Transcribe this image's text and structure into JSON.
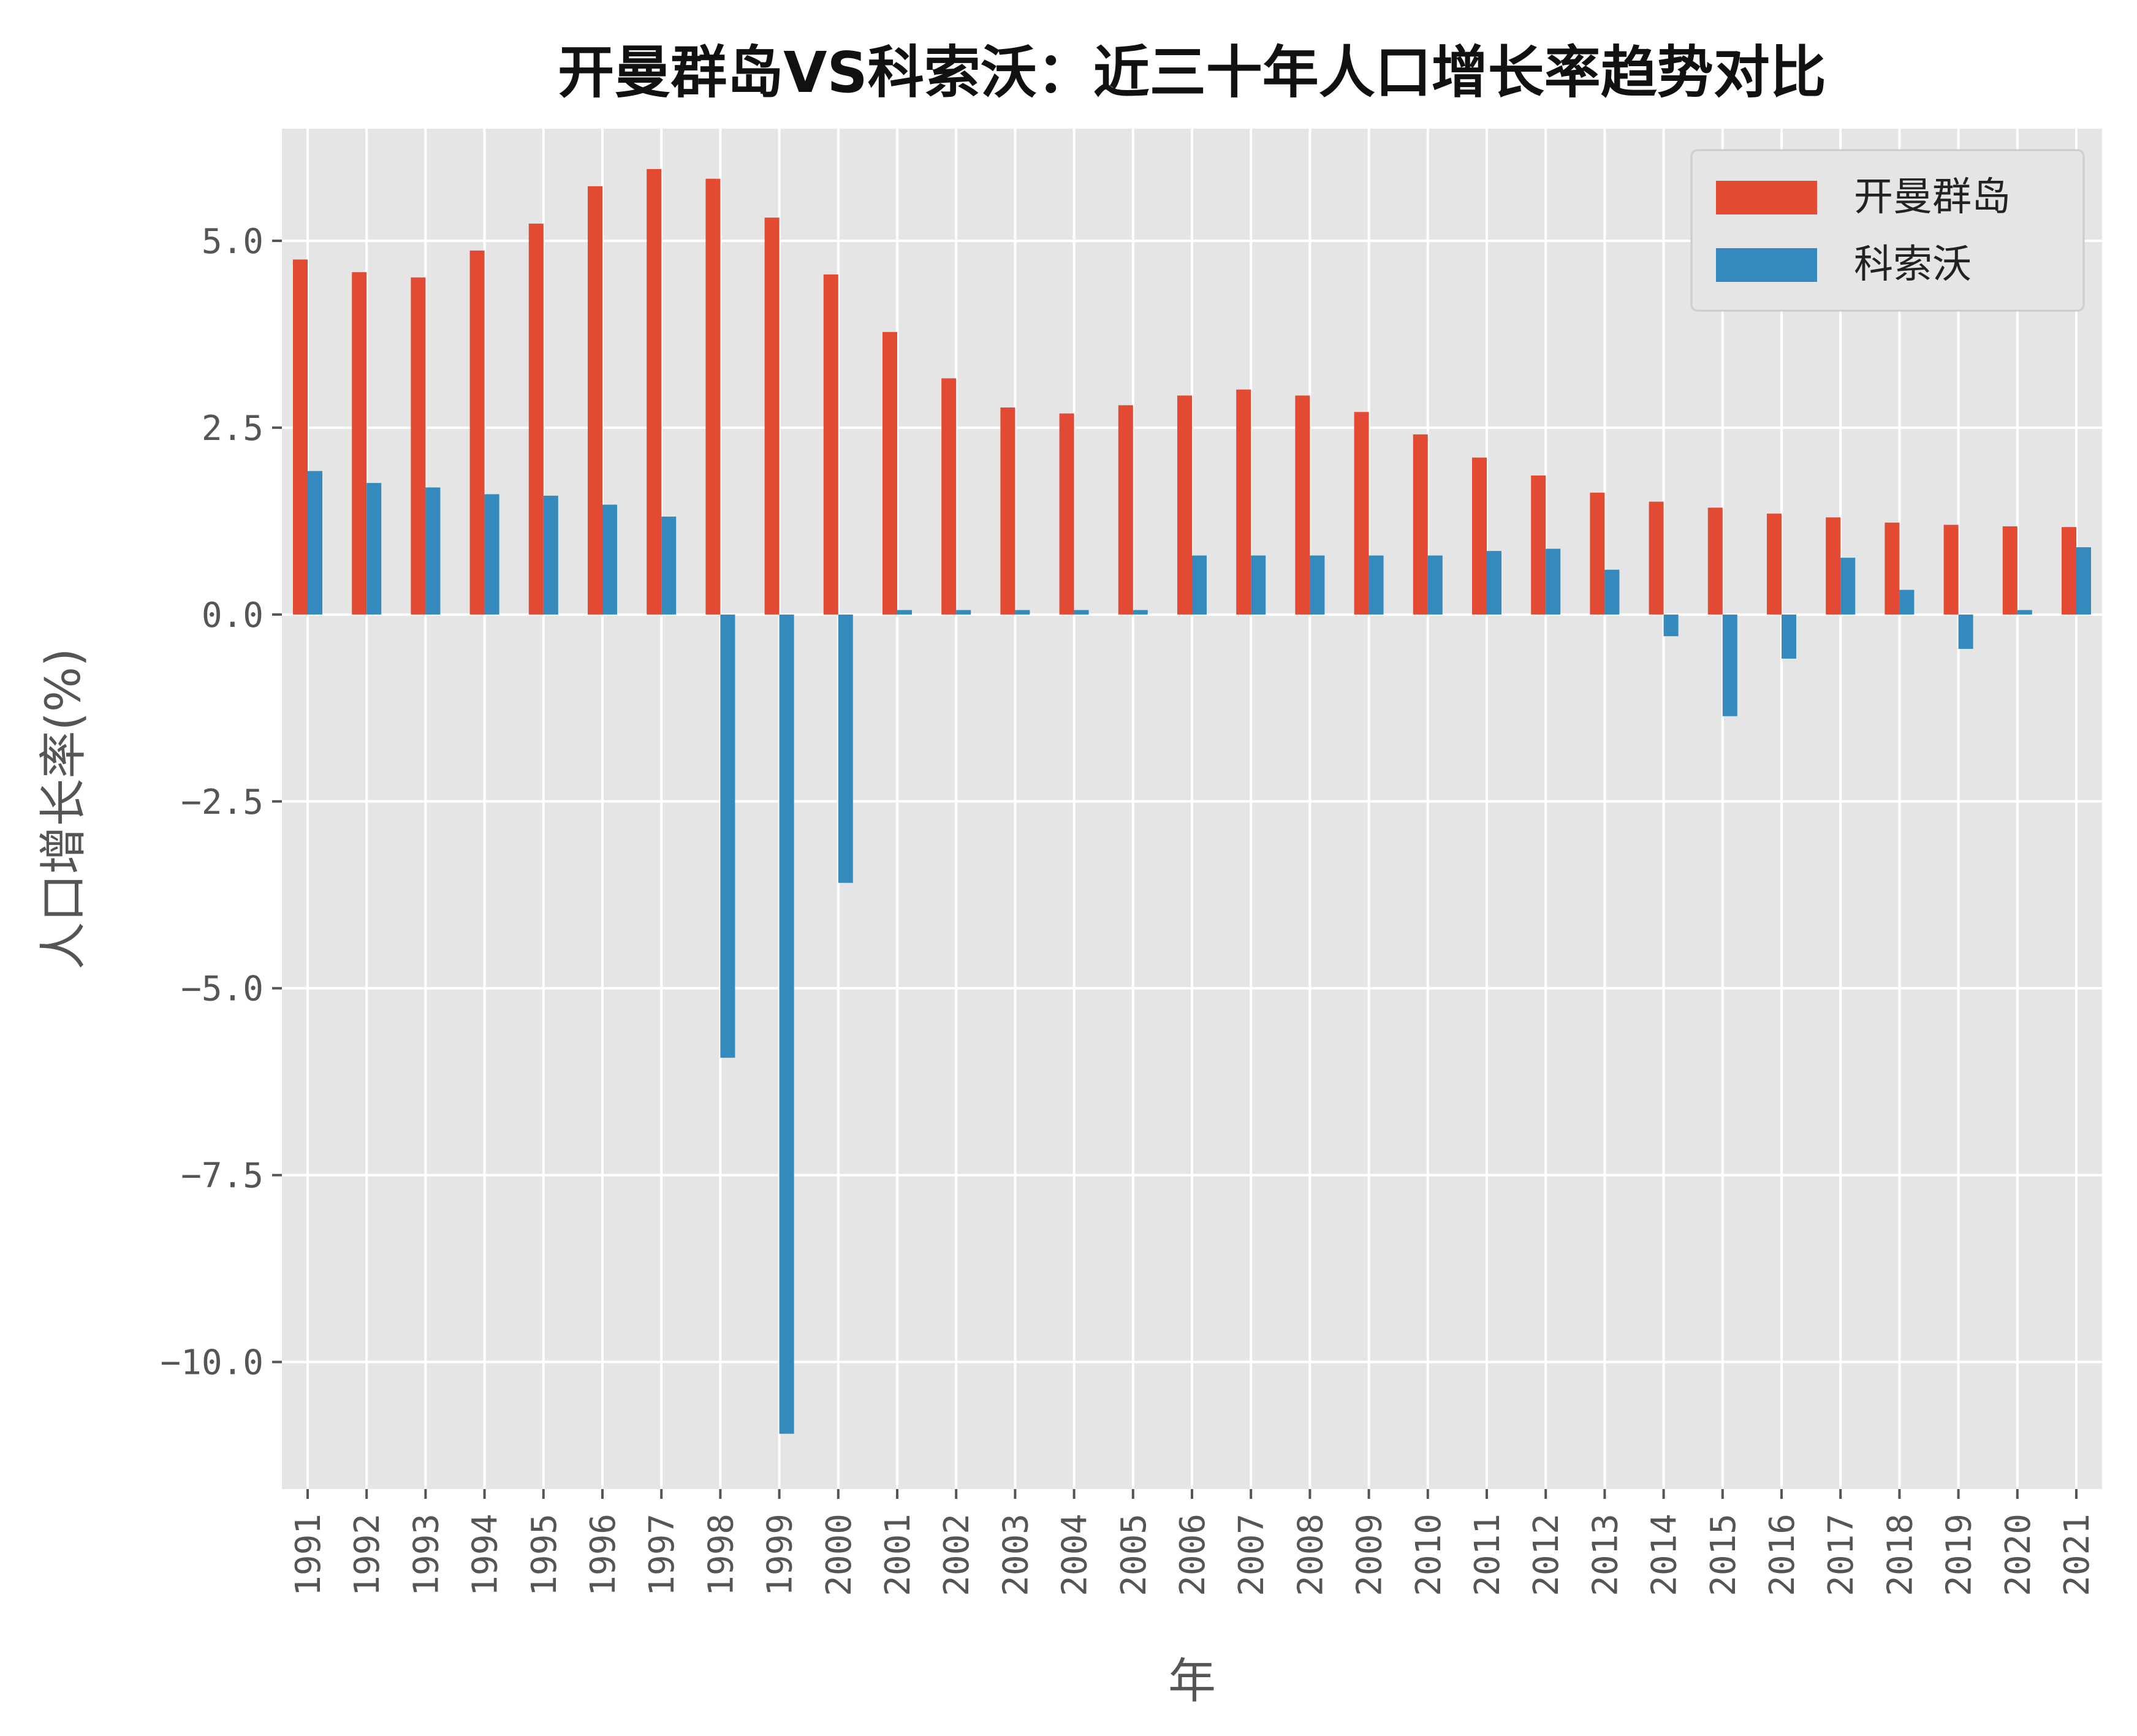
{
  "chart_data": {
    "type": "bar",
    "title": "开曼群岛VS科索沃：近三十年人口增长率趋势对比",
    "xlabel": "年",
    "ylabel": "人口增长率(%)",
    "categories": [
      "1991",
      "1992",
      "1993",
      "1994",
      "1995",
      "1996",
      "1997",
      "1998",
      "1999",
      "2000",
      "2001",
      "2002",
      "2003",
      "2004",
      "2005",
      "2006",
      "2007",
      "2008",
      "2009",
      "2010",
      "2011",
      "2012",
      "2013",
      "2014",
      "2015",
      "2016",
      "2017",
      "2018",
      "2019",
      "2020",
      "2021"
    ],
    "series": [
      {
        "name": "开曼群岛",
        "color": "#E24A33",
        "values": [
          4.75,
          4.58,
          4.51,
          4.87,
          5.23,
          5.73,
          5.96,
          5.83,
          5.31,
          4.55,
          3.78,
          3.16,
          2.77,
          2.69,
          2.8,
          2.93,
          3.01,
          2.93,
          2.71,
          2.41,
          2.1,
          1.86,
          1.63,
          1.51,
          1.43,
          1.35,
          1.3,
          1.23,
          1.2,
          1.18,
          1.17
        ]
      },
      {
        "name": "科索沃",
        "color": "#348ABD",
        "values": [
          1.92,
          1.76,
          1.7,
          1.61,
          1.59,
          1.47,
          1.31,
          -5.93,
          -10.96,
          -3.59,
          0.06,
          0.06,
          0.06,
          0.06,
          0.06,
          0.79,
          0.79,
          0.79,
          0.79,
          0.79,
          0.85,
          0.88,
          0.6,
          -0.29,
          -1.36,
          -0.59,
          0.76,
          0.33,
          -0.46,
          0.06,
          0.9
        ]
      }
    ],
    "yticks": [
      5.0,
      2.5,
      0.0,
      -2.5,
      -5.0,
      -7.5,
      -10.0
    ],
    "ytick_labels": [
      "5.0",
      "2.5",
      "0.0",
      "−2.5",
      "−5.0",
      "−7.5",
      "−10.0"
    ],
    "ylim": [
      -11.7,
      6.5
    ],
    "grid": true,
    "legend": "top-right",
    "plot_background": "#E5E5E5",
    "grid_color": "#FFFFFF"
  }
}
